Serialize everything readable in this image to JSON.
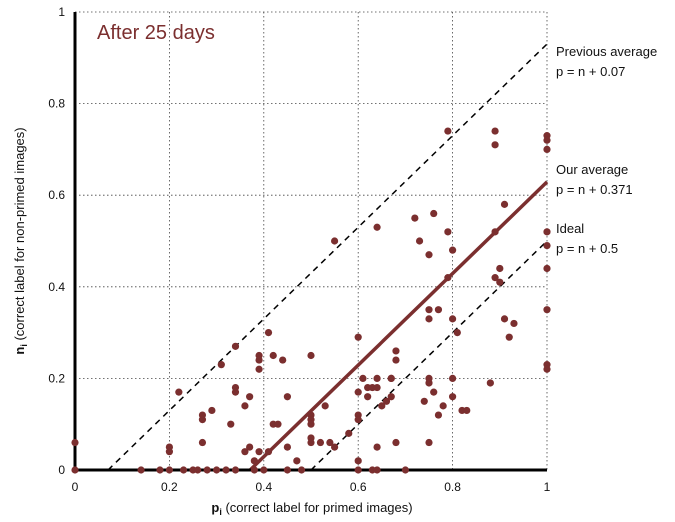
{
  "chart_data": {
    "type": "scatter",
    "title": "",
    "inset_label": "After 25 days",
    "xlabel_sym": "p",
    "xlabel_sub": "i",
    "xlabel_rest": " (correct label for primed images)",
    "ylabel_sym": "n",
    "ylabel_sub": "i",
    "ylabel_rest": " (correct label for non-primed images)",
    "xlim": [
      0,
      1
    ],
    "ylim": [
      0,
      1
    ],
    "xticks": [
      0,
      0.2,
      0.4,
      0.6,
      0.8,
      1
    ],
    "yticks": [
      0,
      0.2,
      0.4,
      0.6,
      0.8,
      1
    ],
    "xtick_labels": [
      "0",
      "0.2",
      "0.4",
      "0.6",
      "0.8",
      "1"
    ],
    "ytick_labels": [
      "0",
      "0.2",
      "0.4",
      "0.6",
      "0.8",
      "1"
    ],
    "grid": true,
    "point_color": "#7b2f2f",
    "reference_lines": [
      {
        "offset": 0.07,
        "style": "dashed",
        "color": "#000000",
        "label1": "Previous average",
        "label2": "p = n + 0.07"
      },
      {
        "offset": 0.371,
        "style": "solid",
        "color": "#7b2f2f",
        "label1": "Our average",
        "label2": "p = n + 0.371"
      },
      {
        "offset": 0.5,
        "style": "dashed",
        "color": "#000000",
        "label1": "Ideal",
        "label2": "p = n + 0.5"
      }
    ],
    "points": [
      [
        0.0,
        0.06
      ],
      [
        0.0,
        0.0
      ],
      [
        0.14,
        0.0
      ],
      [
        0.18,
        0.0
      ],
      [
        0.2,
        0.05
      ],
      [
        0.2,
        0.04
      ],
      [
        0.2,
        0.0
      ],
      [
        0.22,
        0.17
      ],
      [
        0.23,
        0.0
      ],
      [
        0.25,
        0.0
      ],
      [
        0.26,
        0.0
      ],
      [
        0.27,
        0.11
      ],
      [
        0.27,
        0.12
      ],
      [
        0.27,
        0.06
      ],
      [
        0.28,
        0.0
      ],
      [
        0.29,
        0.13
      ],
      [
        0.3,
        0.0
      ],
      [
        0.31,
        0.23
      ],
      [
        0.32,
        0.0
      ],
      [
        0.33,
        0.1
      ],
      [
        0.34,
        0.27
      ],
      [
        0.34,
        0.18
      ],
      [
        0.34,
        0.17
      ],
      [
        0.34,
        0.0
      ],
      [
        0.36,
        0.14
      ],
      [
        0.36,
        0.04
      ],
      [
        0.37,
        0.16
      ],
      [
        0.37,
        0.05
      ],
      [
        0.38,
        0.0
      ],
      [
        0.38,
        0.02
      ],
      [
        0.39,
        0.25
      ],
      [
        0.39,
        0.24
      ],
      [
        0.39,
        0.22
      ],
      [
        0.39,
        0.04
      ],
      [
        0.4,
        0.0
      ],
      [
        0.41,
        0.3
      ],
      [
        0.41,
        0.04
      ],
      [
        0.42,
        0.25
      ],
      [
        0.42,
        0.1
      ],
      [
        0.43,
        0.1
      ],
      [
        0.44,
        0.24
      ],
      [
        0.45,
        0.16
      ],
      [
        0.45,
        0.05
      ],
      [
        0.45,
        0.0
      ],
      [
        0.47,
        0.02
      ],
      [
        0.48,
        0.0
      ],
      [
        0.5,
        0.25
      ],
      [
        0.5,
        0.12
      ],
      [
        0.5,
        0.11
      ],
      [
        0.5,
        0.1
      ],
      [
        0.5,
        0.07
      ],
      [
        0.5,
        0.06
      ],
      [
        0.52,
        0.06
      ],
      [
        0.53,
        0.14
      ],
      [
        0.54,
        0.06
      ],
      [
        0.55,
        0.05
      ],
      [
        0.55,
        0.5
      ],
      [
        0.58,
        0.08
      ],
      [
        0.6,
        0.29
      ],
      [
        0.6,
        0.17
      ],
      [
        0.6,
        0.12
      ],
      [
        0.6,
        0.11
      ],
      [
        0.6,
        0.02
      ],
      [
        0.6,
        0.0
      ],
      [
        0.61,
        0.2
      ],
      [
        0.62,
        0.18
      ],
      [
        0.62,
        0.16
      ],
      [
        0.63,
        0.0
      ],
      [
        0.63,
        0.18
      ],
      [
        0.64,
        0.53
      ],
      [
        0.64,
        0.2
      ],
      [
        0.64,
        0.18
      ],
      [
        0.64,
        0.0
      ],
      [
        0.64,
        0.05
      ],
      [
        0.65,
        0.14
      ],
      [
        0.66,
        0.15
      ],
      [
        0.67,
        0.2
      ],
      [
        0.67,
        0.2
      ],
      [
        0.67,
        0.16
      ],
      [
        0.68,
        0.26
      ],
      [
        0.68,
        0.24
      ],
      [
        0.68,
        0.06
      ],
      [
        0.7,
        0.0
      ],
      [
        0.72,
        0.55
      ],
      [
        0.73,
        0.5
      ],
      [
        0.74,
        0.15
      ],
      [
        0.75,
        0.33
      ],
      [
        0.75,
        0.35
      ],
      [
        0.75,
        0.47
      ],
      [
        0.75,
        0.19
      ],
      [
        0.75,
        0.2
      ],
      [
        0.75,
        0.06
      ],
      [
        0.76,
        0.56
      ],
      [
        0.76,
        0.17
      ],
      [
        0.77,
        0.35
      ],
      [
        0.77,
        0.12
      ],
      [
        0.78,
        0.14
      ],
      [
        0.79,
        0.52
      ],
      [
        0.79,
        0.42
      ],
      [
        0.8,
        0.33
      ],
      [
        0.8,
        0.48
      ],
      [
        0.8,
        0.2
      ],
      [
        0.8,
        0.16
      ],
      [
        0.81,
        0.3
      ],
      [
        0.82,
        0.13
      ],
      [
        0.83,
        0.13
      ],
      [
        0.88,
        0.19
      ],
      [
        0.89,
        0.74
      ],
      [
        0.89,
        0.71
      ],
      [
        0.89,
        0.52
      ],
      [
        0.89,
        0.42
      ],
      [
        0.9,
        0.41
      ],
      [
        0.9,
        0.44
      ],
      [
        0.91,
        0.58
      ],
      [
        0.91,
        0.33
      ],
      [
        0.92,
        0.29
      ],
      [
        0.93,
        0.32
      ],
      [
        1.0,
        0.73
      ],
      [
        1.0,
        0.72
      ],
      [
        1.0,
        0.7
      ],
      [
        1.0,
        0.52
      ],
      [
        1.0,
        0.49
      ],
      [
        1.0,
        0.44
      ],
      [
        1.0,
        0.35
      ],
      [
        1.0,
        0.23
      ],
      [
        1.0,
        0.22
      ],
      [
        0.79,
        0.74
      ]
    ]
  }
}
